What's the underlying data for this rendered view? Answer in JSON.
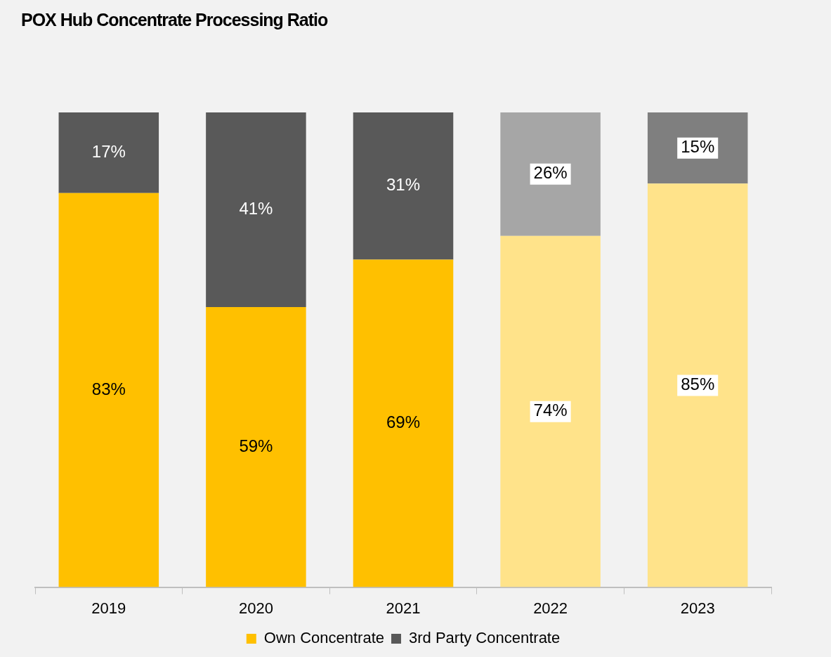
{
  "chart_data": {
    "type": "bar",
    "title": "POX Hub Concentrate Processing Ratio",
    "stacked": true,
    "legend": "bottom",
    "grid": false,
    "categories": [
      "2019",
      "2020",
      "2021",
      "2022",
      "2023"
    ],
    "series": [
      {
        "name": "Own Concentrate",
        "color": "#ffc000",
        "colors": [
          "#ffc000",
          "#ffc000",
          "#ffc000",
          "#ffe38a",
          "#ffe38a"
        ],
        "values": [
          83,
          59,
          69,
          74,
          85
        ],
        "value_labels": [
          "83%",
          "59%",
          "69%",
          "74%",
          "85%"
        ]
      },
      {
        "name": "3rd Party Concentrate",
        "color": "#595959",
        "colors": [
          "#595959",
          "#595959",
          "#595959",
          "#a6a6a6",
          "#7f7f7f"
        ],
        "values": [
          17,
          41,
          31,
          26,
          15
        ],
        "value_labels": [
          "17%",
          "41%",
          "31%",
          "26%",
          "15%"
        ]
      }
    ]
  }
}
